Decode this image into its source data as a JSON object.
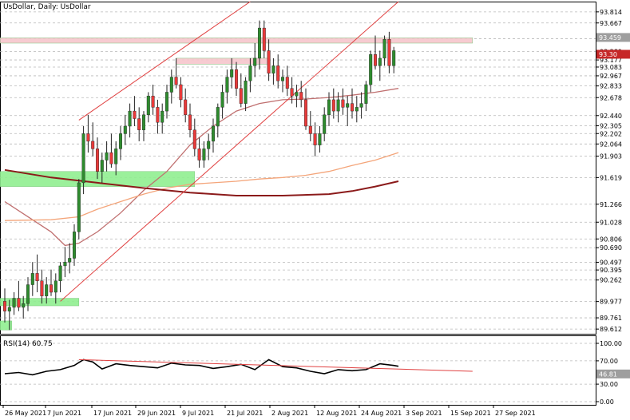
{
  "chart_data": [
    {
      "type": "candlestick",
      "title": "UsDollar, Daily: UsDollar",
      "ylim": [
        89.55,
        93.95
      ],
      "y_ticks": [
        "93.814",
        "93.667",
        "93.459",
        "93.289",
        "93.177",
        "93.083",
        "92.967",
        "92.833",
        "92.678",
        "92.440",
        "92.305",
        "92.202",
        "92.064",
        "91.903",
        "91.619",
        "91.266",
        "91.028",
        "90.806",
        "90.690",
        "90.497",
        "90.395",
        "90.262",
        "89.977",
        "89.761",
        "89.612"
      ],
      "x_ticks": [
        "26 May 2021",
        "7 Jun 2021",
        "17 Jun 2021",
        "29 Jun 2021",
        "9 Jul 2021",
        "21 Jul 2021",
        "2 Aug 2021",
        "12 Aug 2021",
        "24 Aug 2021",
        "3 Sep 2021",
        "15 Sep 2021",
        "27 Sep 2021"
      ],
      "ohlc": [
        [
          89.98,
          90.15,
          89.7,
          89.85
        ],
        [
          89.85,
          90.0,
          89.6,
          89.9
        ],
        [
          89.9,
          90.1,
          89.8,
          90.02
        ],
        [
          90.02,
          90.25,
          89.85,
          89.9
        ],
        [
          89.9,
          90.05,
          89.75,
          89.95
        ],
        [
          89.95,
          90.3,
          89.85,
          90.2
        ],
        [
          90.2,
          90.5,
          90.05,
          90.35
        ],
        [
          90.35,
          90.6,
          90.1,
          90.25
        ],
        [
          90.25,
          90.4,
          89.95,
          90.05
        ],
        [
          90.05,
          90.3,
          89.95,
          90.2
        ],
        [
          90.2,
          90.4,
          90.05,
          90.1
        ],
        [
          90.1,
          90.35,
          89.95,
          90.25
        ],
        [
          90.25,
          90.5,
          90.1,
          90.45
        ],
        [
          90.45,
          90.7,
          90.3,
          90.5
        ],
        [
          90.5,
          90.75,
          90.35,
          90.55
        ],
        [
          90.55,
          91.0,
          90.45,
          90.9
        ],
        [
          90.9,
          91.6,
          90.8,
          91.55
        ],
        [
          91.55,
          92.3,
          91.4,
          92.2
        ],
        [
          92.2,
          92.45,
          91.95,
          92.1
        ],
        [
          92.1,
          92.35,
          91.9,
          92.0
        ],
        [
          92.0,
          92.15,
          91.6,
          91.7
        ],
        [
          91.7,
          91.95,
          91.55,
          91.85
        ],
        [
          91.85,
          92.1,
          91.7,
          91.95
        ],
        [
          91.95,
          92.2,
          91.75,
          91.8
        ],
        [
          91.8,
          92.1,
          91.65,
          92.0
        ],
        [
          92.0,
          92.3,
          91.85,
          92.2
        ],
        [
          92.2,
          92.45,
          92.05,
          92.3
        ],
        [
          92.3,
          92.6,
          92.15,
          92.5
        ],
        [
          92.5,
          92.7,
          92.3,
          92.4
        ],
        [
          92.4,
          92.55,
          92.1,
          92.25
        ],
        [
          92.25,
          92.5,
          92.1,
          92.45
        ],
        [
          92.45,
          92.75,
          92.35,
          92.7
        ],
        [
          92.7,
          92.85,
          92.45,
          92.55
        ],
        [
          92.55,
          92.65,
          92.2,
          92.35
        ],
        [
          92.35,
          92.6,
          92.2,
          92.5
        ],
        [
          92.5,
          92.85,
          92.4,
          92.75
        ],
        [
          92.75,
          93.05,
          92.6,
          92.95
        ],
        [
          92.95,
          93.2,
          92.8,
          92.85
        ],
        [
          92.85,
          92.95,
          92.55,
          92.65
        ],
        [
          92.65,
          92.8,
          92.35,
          92.45
        ],
        [
          92.45,
          92.6,
          92.15,
          92.25
        ],
        [
          92.25,
          92.4,
          91.9,
          92.0
        ],
        [
          92.0,
          92.15,
          91.75,
          91.85
        ],
        [
          91.85,
          92.1,
          91.75,
          92.0
        ],
        [
          92.0,
          92.2,
          91.85,
          92.1
        ],
        [
          92.1,
          92.4,
          91.95,
          92.3
        ],
        [
          92.3,
          92.6,
          92.15,
          92.55
        ],
        [
          92.55,
          92.85,
          92.4,
          92.75
        ],
        [
          92.75,
          93.05,
          92.6,
          92.95
        ],
        [
          92.95,
          93.2,
          92.8,
          93.05
        ],
        [
          93.05,
          93.15,
          92.7,
          92.8
        ],
        [
          92.8,
          93.0,
          92.55,
          92.6
        ],
        [
          92.6,
          92.95,
          92.5,
          92.9
        ],
        [
          92.9,
          93.2,
          92.75,
          93.1
        ],
        [
          93.1,
          93.4,
          92.95,
          93.2
        ],
        [
          93.2,
          93.7,
          93.05,
          93.6
        ],
        [
          93.6,
          93.7,
          93.2,
          93.3
        ],
        [
          93.3,
          93.45,
          92.9,
          93.0
        ],
        [
          93.0,
          93.2,
          92.85,
          93.1
        ],
        [
          93.1,
          93.25,
          92.8,
          92.9
        ],
        [
          92.9,
          93.05,
          92.75,
          92.95
        ],
        [
          92.95,
          93.1,
          92.7,
          92.8
        ],
        [
          92.8,
          92.95,
          92.6,
          92.7
        ],
        [
          92.7,
          92.85,
          92.55,
          92.75
        ],
        [
          92.75,
          92.9,
          92.55,
          92.65
        ],
        [
          92.65,
          92.8,
          92.25,
          92.3
        ],
        [
          92.3,
          92.5,
          92.1,
          92.2
        ],
        [
          92.2,
          92.35,
          91.9,
          92.05
        ],
        [
          92.05,
          92.3,
          91.95,
          92.2
        ],
        [
          92.2,
          92.55,
          92.1,
          92.45
        ],
        [
          92.45,
          92.75,
          92.3,
          92.65
        ],
        [
          92.65,
          92.8,
          92.4,
          92.5
        ],
        [
          92.5,
          92.75,
          92.35,
          92.65
        ],
        [
          92.65,
          92.8,
          92.45,
          92.55
        ],
        [
          92.55,
          92.7,
          92.3,
          92.6
        ],
        [
          92.6,
          92.8,
          92.4,
          92.5
        ],
        [
          92.5,
          92.7,
          92.35,
          92.55
        ],
        [
          92.55,
          92.75,
          92.4,
          92.6
        ],
        [
          92.6,
          92.9,
          92.5,
          92.85
        ],
        [
          92.85,
          93.3,
          92.75,
          93.25
        ],
        [
          93.25,
          93.5,
          93.05,
          93.1
        ],
        [
          93.1,
          93.3,
          92.9,
          93.2
        ],
        [
          93.2,
          93.5,
          93.1,
          93.45
        ],
        [
          93.45,
          93.55,
          93.0,
          93.1
        ],
        [
          93.1,
          93.35,
          93.0,
          93.3
        ]
      ],
      "series": [
        {
          "name": "",
          "color": "#c07070",
          "x": [
            0,
            10,
            13,
            16,
            20,
            25,
            30,
            35,
            40,
            45,
            50,
            55,
            60,
            65,
            70,
            75,
            80,
            85
          ],
          "values": [
            91.3,
            90.9,
            90.72,
            90.75,
            90.9,
            91.15,
            91.45,
            91.7,
            92.05,
            92.3,
            92.5,
            92.6,
            92.65,
            92.66,
            92.68,
            92.71,
            92.75,
            92.8
          ]
        },
        {
          "name": "",
          "color": "#f4a57a",
          "x": [
            0,
            10,
            16,
            20,
            25,
            30,
            35,
            40,
            45,
            50,
            55,
            60,
            65,
            70,
            75,
            80,
            85
          ],
          "values": [
            91.05,
            91.06,
            91.1,
            91.2,
            91.3,
            91.4,
            91.48,
            91.53,
            91.55,
            91.57,
            91.6,
            91.62,
            91.65,
            91.7,
            91.78,
            91.85,
            91.95
          ]
        },
        {
          "name": "",
          "color": "#8b1a1a",
          "x": [
            0,
            10,
            20,
            30,
            40,
            50,
            60,
            70,
            75,
            80,
            85
          ],
          "values": [
            91.72,
            91.62,
            91.55,
            91.48,
            91.42,
            91.38,
            91.38,
            91.4,
            91.44,
            91.5,
            91.57
          ]
        }
      ],
      "trendlines": [
        {
          "color": "#e04040",
          "x": [
            16,
            53
          ],
          "y": [
            92.38,
            93.95
          ]
        },
        {
          "color": "#e04040",
          "x": [
            12,
            85
          ],
          "y": [
            89.98,
            93.95
          ]
        }
      ],
      "zones": [
        {
          "color": "#90ee90",
          "x": [
            0,
            41
          ],
          "y": [
            91.5,
            91.7
          ]
        },
        {
          "color": "#90ee90",
          "x": [
            0,
            16
          ],
          "y": [
            89.92,
            90.02
          ]
        },
        {
          "color": "#90ee90",
          "x": [
            0,
            1.5
          ],
          "y": [
            89.6,
            89.72
          ]
        },
        {
          "color": "#f6c5cc",
          "x": [
            0,
            101
          ],
          "y": [
            93.4,
            93.47
          ]
        },
        {
          "color": "#f6c5cc",
          "x": [
            37,
            57
          ],
          "y": [
            93.12,
            93.2
          ]
        }
      ],
      "highlighted_prices": [
        {
          "label": "93.459",
          "color": "#9e9e9e"
        },
        {
          "label": "93.30",
          "color": "#c62828"
        }
      ]
    },
    {
      "type": "line",
      "title": "RSI(14) 60.75",
      "ylim": [
        0,
        100
      ],
      "y_ticks": [
        "100.00",
        "70.00",
        "46.81",
        "30.00",
        "0.00"
      ],
      "series": [
        {
          "name": "RSI(14)",
          "color": "#000000",
          "x": [
            0,
            3,
            6,
            9,
            12,
            15,
            17,
            19,
            21,
            24,
            27,
            30,
            33,
            36,
            39,
            42,
            45,
            48,
            51,
            54,
            57,
            60,
            63,
            66,
            69,
            72,
            75,
            78,
            81,
            84,
            85
          ],
          "values": [
            48,
            50,
            46,
            52,
            55,
            62,
            72,
            68,
            56,
            65,
            62,
            60,
            58,
            66,
            63,
            62,
            57,
            60,
            64,
            55,
            72,
            60,
            58,
            52,
            48,
            55,
            53,
            55,
            65,
            62,
            60.75
          ]
        },
        {
          "name": "",
          "color": "#e04040",
          "x": [
            16,
            101
          ],
          "values": [
            72,
            52
          ]
        }
      ],
      "highlighted_value": {
        "label": "46.81",
        "color": "#9e9e9e"
      }
    }
  ]
}
